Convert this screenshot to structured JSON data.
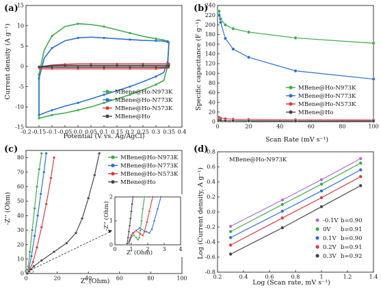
{
  "colors": {
    "green": "#3caa4a",
    "blue": "#2b6fd0",
    "red": "#d9383f",
    "black": "#444444",
    "violet": "#b36ad6"
  },
  "panel_labels": [
    "(a)",
    "(b)",
    "(c)",
    "(d)"
  ],
  "chart_data": [
    {
      "id": "a",
      "type": "line",
      "xlabel": "Potential (V vs. Ag/AgCl)",
      "ylabel": "Current  density (A g⁻¹)",
      "xlim": [
        -0.2,
        0.4
      ],
      "ylim": [
        -15,
        15
      ],
      "xticks": [
        -0.2,
        -0.15,
        -0.1,
        -0.05,
        0.0,
        0.05,
        0.1,
        0.15,
        0.2,
        0.25,
        0.3,
        0.35,
        0.4
      ],
      "xtick_labels": [
        "-0.2",
        "-0.15",
        "-0.1",
        "-0.05",
        "0.0",
        "0.05",
        "0.1",
        "0.15",
        "0.2",
        "0.25",
        "0.3",
        "0.35",
        "0.4"
      ],
      "yticks": [
        -15,
        -10,
        -5,
        0,
        5,
        10,
        15
      ],
      "legend_position": "bottom-right",
      "series": [
        {
          "name": "MBene@Ho-N973K",
          "color_key": "green",
          "x": [
            -0.15,
            -0.13,
            -0.1,
            -0.05,
            0.0,
            0.05,
            0.1,
            0.15,
            0.2,
            0.25,
            0.3,
            0.33,
            0.345,
            0.35,
            0.345,
            0.33,
            0.3,
            0.25,
            0.2,
            0.15,
            0.1,
            0.05,
            0.0,
            -0.05,
            -0.1,
            -0.13,
            -0.15,
            -0.15
          ],
          "y": [
            -2,
            4,
            7.5,
            9.8,
            10.5,
            10.3,
            9.8,
            9.0,
            8.2,
            7.4,
            6.8,
            6.5,
            6.2,
            6.0,
            0,
            -3.5,
            -4.5,
            -5.8,
            -7.0,
            -8.0,
            -9.0,
            -10.0,
            -10.8,
            -11.5,
            -12.0,
            -12.5,
            -12.8,
            -2
          ]
        },
        {
          "name": "MBene@Ho-N773K",
          "color_key": "blue",
          "x": [
            -0.15,
            -0.13,
            -0.1,
            -0.05,
            0.0,
            0.05,
            0.1,
            0.15,
            0.2,
            0.25,
            0.3,
            0.33,
            0.345,
            0.35,
            0.345,
            0.33,
            0.3,
            0.25,
            0.2,
            0.15,
            0.1,
            0.05,
            0.0,
            -0.05,
            -0.1,
            -0.13,
            -0.15,
            -0.15
          ],
          "y": [
            -3,
            2,
            4.5,
            6.3,
            7.0,
            7.2,
            7.0,
            6.8,
            6.6,
            6.4,
            6.3,
            6.2,
            6.0,
            5.8,
            1,
            -1.5,
            -2.5,
            -3.8,
            -5.0,
            -6.0,
            -7.0,
            -8.0,
            -9.0,
            -9.8,
            -10.8,
            -11.5,
            -12.0,
            -3
          ]
        },
        {
          "name": "MBene@Ho-N573K",
          "color_key": "red",
          "x": [
            -0.15,
            -0.1,
            -0.05,
            0.0,
            0.05,
            0.1,
            0.15,
            0.2,
            0.25,
            0.3,
            0.35,
            0.35,
            0.3,
            0.25,
            0.2,
            0.15,
            0.1,
            0.05,
            0.0,
            -0.05,
            -0.1,
            -0.15,
            -0.15
          ],
          "y": [
            -0.2,
            0.3,
            0.5,
            0.6,
            0.6,
            0.6,
            0.6,
            0.6,
            0.6,
            0.6,
            0.6,
            -0.4,
            -0.6,
            -0.6,
            -0.6,
            -0.6,
            -0.6,
            -0.6,
            -0.6,
            -0.6,
            -0.6,
            -0.6,
            -0.2
          ]
        },
        {
          "name": "MBene@Ho",
          "color_key": "black",
          "x": [
            -0.15,
            -0.1,
            -0.05,
            0.0,
            0.05,
            0.1,
            0.15,
            0.2,
            0.25,
            0.3,
            0.35,
            0.35,
            0.3,
            0.25,
            0.2,
            0.15,
            0.1,
            0.05,
            0.0,
            -0.05,
            -0.1,
            -0.15,
            -0.15
          ],
          "y": [
            -0.1,
            0.15,
            0.2,
            0.2,
            0.2,
            0.2,
            0.2,
            0.2,
            0.2,
            0.2,
            0.2,
            -0.2,
            -0.2,
            -0.2,
            -0.2,
            -0.2,
            -0.2,
            -0.2,
            -0.2,
            -0.2,
            -0.2,
            -0.2,
            -0.1
          ]
        }
      ]
    },
    {
      "id": "b",
      "type": "line",
      "xlabel": "Scan Rate (mV s⁻¹)",
      "ylabel": "Specific capacitance (F g⁻¹)",
      "xlim": [
        0,
        100
      ],
      "ylim": [
        0,
        240
      ],
      "xticks": [
        0,
        20,
        40,
        60,
        80,
        100
      ],
      "yticks": [
        0,
        20,
        40,
        60,
        80,
        100,
        120,
        140,
        160,
        180,
        200,
        220,
        240
      ],
      "legend_position": "bottom-right",
      "series": [
        {
          "name": "MBene@Ho-N973K",
          "color_key": "green",
          "x": [
            1,
            2,
            5,
            10,
            20,
            50,
            100
          ],
          "y": [
            228,
            212,
            200,
            192,
            185,
            173,
            162
          ]
        },
        {
          "name": "MBene@Ho-N773K",
          "color_key": "blue",
          "x": [
            1,
            2,
            5,
            10,
            20,
            50,
            100
          ],
          "y": [
            220,
            205,
            172,
            150,
            133,
            105,
            88
          ]
        },
        {
          "name": "MBene@Ho-N573K",
          "color_key": "red",
          "x": [
            1,
            2,
            5,
            10,
            20,
            50,
            100
          ],
          "y": [
            9,
            7,
            6,
            5,
            4.5,
            4,
            3.5
          ]
        },
        {
          "name": "MBene@Ho",
          "color_key": "black",
          "x": [
            1,
            2,
            5,
            10,
            20,
            50,
            100
          ],
          "y": [
            3,
            2.5,
            2,
            2,
            1.8,
            1.5,
            1.5
          ]
        }
      ]
    },
    {
      "id": "c",
      "type": "line",
      "xlabel": "Z' (Ohm)",
      "ylabel": "-Z'' (Ohm)",
      "xlim": [
        0,
        100
      ],
      "ylim": [
        0,
        85
      ],
      "xticks": [
        0,
        20,
        40,
        60,
        80,
        100
      ],
      "yticks": [
        0,
        10,
        20,
        30,
        40,
        50,
        60,
        70,
        80
      ],
      "legend_position": "top-right",
      "series": [
        {
          "name": "MBene@Ho-N973K",
          "color_key": "green",
          "x": [
            0.8,
            1.5,
            2.5,
            4,
            5.5,
            7,
            8.5,
            10
          ],
          "y": [
            0,
            5,
            15,
            30,
            45,
            60,
            72,
            83
          ]
        },
        {
          "name": "MBene@Ho-N773K",
          "color_key": "blue",
          "x": [
            1,
            2,
            3.5,
            5.5,
            7.5,
            9.5,
            11.5,
            13
          ],
          "y": [
            0,
            4,
            12,
            26,
            40,
            55,
            70,
            83
          ]
        },
        {
          "name": "MBene@Ho-N573K",
          "color_key": "red",
          "x": [
            1,
            2.5,
            4.5,
            7,
            10,
            13,
            16,
            18
          ],
          "y": [
            0,
            3,
            8,
            18,
            32,
            48,
            66,
            80
          ]
        },
        {
          "name": "MBene@Ho",
          "color_key": "black",
          "x": [
            0.8,
            2,
            5,
            10,
            18,
            26,
            32,
            36,
            40,
            44,
            47
          ],
          "y": [
            0,
            1.5,
            5,
            9,
            15,
            21,
            28,
            38,
            52,
            68,
            83
          ]
        }
      ],
      "inset": {
        "xlim": [
          0,
          4
        ],
        "ylim": [
          0,
          2
        ],
        "xticks": [
          0,
          1,
          2,
          3,
          4
        ],
        "yticks": [
          0,
          1,
          2
        ],
        "ylabel": "-Z'' (Ohm)",
        "xlabel": "Z' (Ohm)",
        "series": [
          {
            "color_key": "green",
            "x": [
              0.8,
              0.95,
              1.15,
              1.3,
              1.4,
              1.48,
              1.55,
              1.62,
              1.7,
              1.8
            ],
            "y": [
              0.05,
              0.3,
              0.4,
              0.3,
              0.22,
              0.3,
              0.6,
              1.0,
              1.5,
              2.0
            ]
          },
          {
            "color_key": "blue",
            "x": [
              0.85,
              1.1,
              1.5,
              1.9,
              2.1,
              2.25,
              2.4,
              2.6,
              2.8
            ],
            "y": [
              0.05,
              0.5,
              0.7,
              0.55,
              0.5,
              0.65,
              1.0,
              1.5,
              2.0
            ]
          },
          {
            "color_key": "red",
            "x": [
              0.8,
              1.0,
              1.3,
              1.55,
              1.7,
              1.8,
              1.95,
              2.1,
              2.3
            ],
            "y": [
              0.05,
              0.4,
              0.6,
              0.45,
              0.4,
              0.55,
              0.95,
              1.4,
              2.0
            ]
          },
          {
            "color_key": "black",
            "x": [
              0.75,
              0.8,
              0.85,
              0.9,
              0.95,
              1.0,
              1.05,
              1.1
            ],
            "y": [
              0.05,
              0.3,
              0.55,
              0.8,
              1.1,
              1.4,
              1.7,
              2.0
            ]
          }
        ]
      }
    },
    {
      "id": "d",
      "type": "scatter",
      "annotation": "MBene@Ho-N973K",
      "xlabel": "Log (Scan rate, mV s⁻¹)",
      "ylabel": "Log (Current density, A g⁻¹)",
      "xlim": [
        0.2,
        1.4
      ],
      "ylim": [
        -0.8,
        0.8
      ],
      "xticks": [
        0.2,
        0.4,
        0.6,
        0.8,
        1.0,
        1.2,
        1.4
      ],
      "yticks": [
        -0.8,
        -0.6,
        -0.4,
        -0.2,
        0.0,
        0.2,
        0.4,
        0.6,
        0.8
      ],
      "legend_position": "bottom-right",
      "series": [
        {
          "name": "-0.1V",
          "b_label": "b=0.90",
          "color_key": "violet",
          "x": [
            0.301,
            0.699,
            1.0,
            1.301
          ],
          "y": [
            -0.19,
            0.16,
            0.43,
            0.71
          ]
        },
        {
          "name": "0V",
          "b_label": "b=0.91",
          "color_key": "green",
          "x": [
            0.301,
            0.699,
            1.0,
            1.301
          ],
          "y": [
            -0.26,
            0.1,
            0.37,
            0.65
          ]
        },
        {
          "name": "0.1V",
          "b_label": "b=0.90",
          "color_key": "blue",
          "x": [
            0.301,
            0.699,
            1.0,
            1.301
          ],
          "y": [
            -0.34,
            0.01,
            0.28,
            0.56
          ]
        },
        {
          "name": "0.2V",
          "b_label": "b=0.91",
          "color_key": "red",
          "x": [
            0.301,
            0.699,
            1.0,
            1.301
          ],
          "y": [
            -0.44,
            -0.08,
            0.19,
            0.47
          ]
        },
        {
          "name": "0.3V",
          "b_label": "b=0.92",
          "color_key": "black",
          "x": [
            0.301,
            0.699,
            1.0,
            1.301
          ],
          "y": [
            -0.56,
            -0.21,
            0.07,
            0.35
          ]
        }
      ]
    }
  ]
}
